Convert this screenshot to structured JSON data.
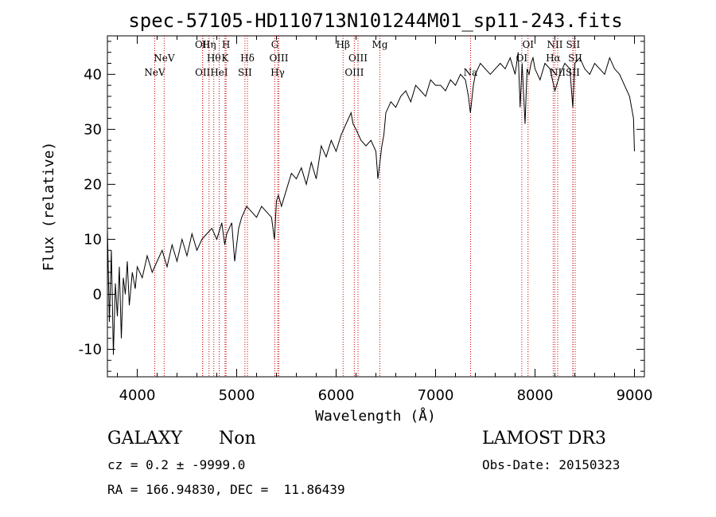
{
  "chart_data": {
    "type": "line",
    "title": "spec-57105-HD110713N101244M01_sp11-243.fits",
    "xlabel": "Wavelength (Å)",
    "ylabel": "Flux (relative)",
    "xlim": [
      3700,
      9100
    ],
    "ylim": [
      -15,
      47
    ],
    "x_ticks": [
      4000,
      5000,
      6000,
      7000,
      8000,
      9000
    ],
    "y_ticks": [
      -10,
      0,
      10,
      20,
      30,
      40
    ],
    "series": [
      {
        "name": "spectrum",
        "x": [
          3700,
          3720,
          3740,
          3760,
          3780,
          3800,
          3820,
          3840,
          3860,
          3880,
          3900,
          3920,
          3950,
          3980,
          4000,
          4050,
          4100,
          4150,
          4200,
          4250,
          4300,
          4350,
          4400,
          4450,
          4500,
          4550,
          4600,
          4650,
          4700,
          4750,
          4800,
          4850,
          4880,
          4900,
          4950,
          4980,
          5000,
          5020,
          5050,
          5100,
          5150,
          5200,
          5250,
          5300,
          5350,
          5380,
          5400,
          5420,
          5450,
          5500,
          5550,
          5600,
          5650,
          5700,
          5750,
          5800,
          5850,
          5900,
          5950,
          6000,
          6050,
          6100,
          6150,
          6170,
          6200,
          6250,
          6300,
          6350,
          6400,
          6420,
          6440,
          6460,
          6480,
          6500,
          6550,
          6600,
          6650,
          6700,
          6750,
          6800,
          6850,
          6900,
          6950,
          7000,
          7050,
          7100,
          7150,
          7200,
          7250,
          7300,
          7330,
          7350,
          7380,
          7400,
          7450,
          7500,
          7550,
          7600,
          7650,
          7700,
          7750,
          7800,
          7830,
          7850,
          7870,
          7900,
          7920,
          7940,
          7960,
          7980,
          8000,
          8050,
          8100,
          8150,
          8200,
          8250,
          8300,
          8350,
          8380,
          8400,
          8450,
          8500,
          8550,
          8600,
          8650,
          8700,
          8750,
          8800,
          8850,
          8900,
          8950,
          8990,
          9000
        ],
        "y": [
          12,
          -5,
          8,
          -11,
          2,
          -4,
          5,
          -8,
          3,
          0,
          6,
          -2,
          4,
          1,
          5,
          3,
          7,
          4,
          6,
          8,
          5,
          9,
          6,
          10,
          7,
          11,
          8,
          10,
          11,
          12,
          10,
          13,
          9,
          11,
          13,
          6,
          9,
          12,
          14,
          16,
          15,
          14,
          16,
          15,
          14,
          10,
          17,
          18,
          16,
          19,
          22,
          21,
          23,
          20,
          24,
          21,
          27,
          25,
          28,
          26,
          29,
          31,
          33,
          31,
          30,
          28,
          27,
          28,
          26,
          21,
          24,
          27,
          29,
          33,
          35,
          34,
          36,
          37,
          35,
          38,
          37,
          36,
          39,
          38,
          38,
          37,
          39,
          38,
          40,
          39,
          36,
          33,
          38,
          40,
          42,
          41,
          40,
          41,
          42,
          41,
          43,
          40,
          44,
          34,
          42,
          31,
          41,
          40,
          42,
          43,
          41,
          39,
          42,
          41,
          37,
          40,
          42,
          41,
          34,
          42,
          43,
          41,
          40,
          42,
          41,
          40,
          43,
          41,
          40,
          38,
          36,
          32,
          26
        ]
      }
    ],
    "emission_lines": [
      {
        "label": "NeV",
        "x": 4176,
        "row": "bottom"
      },
      {
        "label": "NeV",
        "x": 4271,
        "row": "top"
      },
      {
        "label": "OII",
        "x": 4658,
        "row": "bottom"
      },
      {
        "label": "OII",
        "x": 4657,
        "row": "top2"
      },
      {
        "label": "Hη",
        "x": 4722,
        "row": "top2"
      },
      {
        "label": "Hθ",
        "x": 4770,
        "row": "top"
      },
      {
        "label": "HeI",
        "x": 4824,
        "row": "bottom"
      },
      {
        "label": "H",
        "x": 4893,
        "row": "top2"
      },
      {
        "label": "K",
        "x": 4883,
        "row": "top"
      },
      {
        "label": "Hδ",
        "x": 5108,
        "row": "top"
      },
      {
        "label": "SII",
        "x": 5083,
        "row": "bottom"
      },
      {
        "label": "G",
        "x": 5384,
        "row": "top2"
      },
      {
        "label": "OIII",
        "x": 5424,
        "row": "top"
      },
      {
        "label": "Hγ",
        "x": 5412,
        "row": "bottom"
      },
      {
        "label": "Hβ",
        "x": 6070,
        "row": "top2"
      },
      {
        "label": "OIII",
        "x": 6220,
        "row": "top"
      },
      {
        "label": "OIII",
        "x": 6183,
        "row": "bottom"
      },
      {
        "label": "Mg",
        "x": 6440,
        "row": "top2"
      },
      {
        "label": "Na",
        "x": 7352,
        "row": "bottom"
      },
      {
        "label": "OI",
        "x": 7930,
        "row": "top2"
      },
      {
        "label": "OI",
        "x": 7867,
        "row": "top"
      },
      {
        "label": "NII",
        "x": 8200,
        "row": "top2"
      },
      {
        "label": "Hα",
        "x": 8183,
        "row": "top"
      },
      {
        "label": "NII",
        "x": 8228,
        "row": "bottom"
      },
      {
        "label": "SII",
        "x": 8383,
        "row": "top2"
      },
      {
        "label": "SII",
        "x": 8404,
        "row": "top"
      },
      {
        "label": "SII",
        "x": 8380,
        "row": "bottom"
      }
    ]
  },
  "info": {
    "object_class": "GALAXY",
    "subclass": "Non",
    "survey": "LAMOST DR3",
    "redshift_line": "cz = 0.2 ± -9999.0",
    "obs_date": "Obs-Date: 20150323",
    "coords": "RA = 166.94830, DEC =  11.86439"
  }
}
